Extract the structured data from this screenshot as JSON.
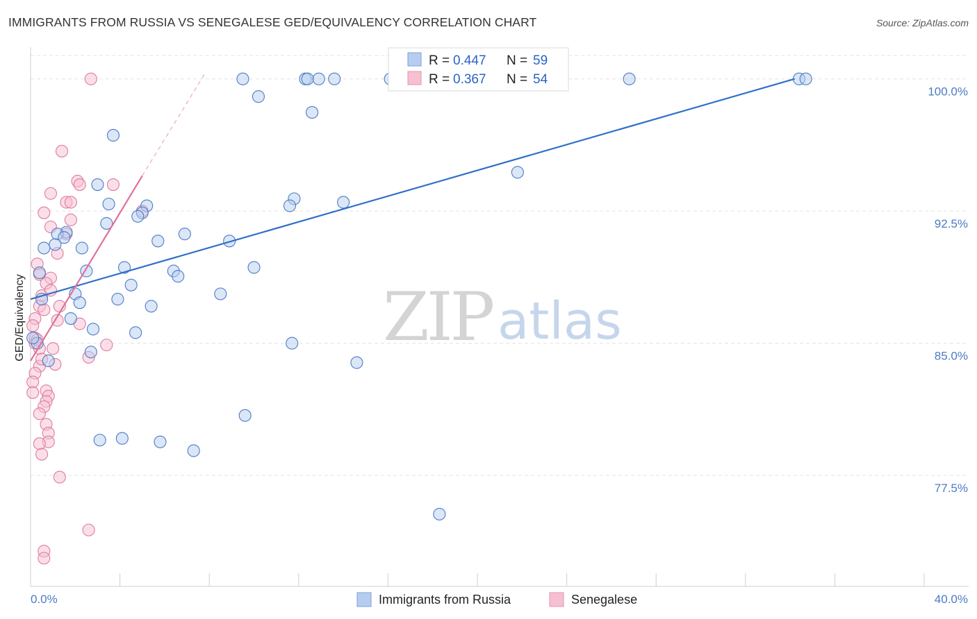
{
  "title": "IMMIGRANTS FROM RUSSIA VS SENEGALESE GED/EQUIVALENCY CORRELATION CHART",
  "source": "Source: ZipAtlas.com",
  "watermark": {
    "zip": "ZIP",
    "atlas": "atlas"
  },
  "colors": {
    "blue": "#4a7cc4",
    "blue_fill": "#b7cdef",
    "blue_line": "#2f6fc9",
    "pink": "#e07aa0",
    "pink_fill": "#f6c0d2",
    "pink_line": "#e0709a",
    "grid": "#e3e3e3"
  },
  "legend": {
    "russia": {
      "r_label": "R =",
      "r_value": "0.447",
      "n_label": "N =",
      "n_value": "59"
    },
    "senegalese": {
      "r_label": "R =",
      "r_value": "0.367",
      "n_label": "N =",
      "n_value": "54"
    }
  },
  "chart_data": {
    "type": "scatter",
    "title": "IMMIGRANTS FROM RUSSIA VS SENEGALESE GED/EQUIVALENCY CORRELATION CHART",
    "xlabel": "",
    "ylabel": "GED/Equivalency",
    "xlim": [
      0,
      40
    ],
    "ylim": [
      71.2,
      101.8
    ],
    "x_tick_labels": [
      "0.0%",
      "40.0%"
    ],
    "y_ticks": [
      77.5,
      85.0,
      92.5,
      100.0
    ],
    "y_tick_labels": [
      "77.5%",
      "85.0%",
      "92.5%",
      "100.0%"
    ],
    "legend_position": "top-center",
    "series": [
      {
        "name": "Immigrants from Russia",
        "color": "#4a7cc4",
        "trend": {
          "x": [
            0,
            34.2
          ],
          "y": [
            87.5,
            100.0
          ]
        },
        "points": [
          [
            9.5,
            100.0
          ],
          [
            12.3,
            100.0
          ],
          [
            12.4,
            100.0
          ],
          [
            12.9,
            100.0
          ],
          [
            13.6,
            100.0
          ],
          [
            16.1,
            100.0
          ],
          [
            26.8,
            100.0
          ],
          [
            34.4,
            100.0
          ],
          [
            34.7,
            100.0
          ],
          [
            10.2,
            99.0
          ],
          [
            12.6,
            98.1
          ],
          [
            3.7,
            96.8
          ],
          [
            21.8,
            94.7
          ],
          [
            3.0,
            94.0
          ],
          [
            11.8,
            93.2
          ],
          [
            11.6,
            92.8
          ],
          [
            3.5,
            92.9
          ],
          [
            5.2,
            92.8
          ],
          [
            5.0,
            92.4
          ],
          [
            14.0,
            93.0
          ],
          [
            4.8,
            92.2
          ],
          [
            3.4,
            91.8
          ],
          [
            1.6,
            91.3
          ],
          [
            1.2,
            91.2
          ],
          [
            6.9,
            91.2
          ],
          [
            1.5,
            91.0
          ],
          [
            0.6,
            90.4
          ],
          [
            1.1,
            90.6
          ],
          [
            2.3,
            90.4
          ],
          [
            5.7,
            90.8
          ],
          [
            8.9,
            90.8
          ],
          [
            0.4,
            89.0
          ],
          [
            2.5,
            89.1
          ],
          [
            4.2,
            89.3
          ],
          [
            6.4,
            89.1
          ],
          [
            6.6,
            88.8
          ],
          [
            10.0,
            89.3
          ],
          [
            4.5,
            88.3
          ],
          [
            2.0,
            87.8
          ],
          [
            8.5,
            87.8
          ],
          [
            0.5,
            87.5
          ],
          [
            3.9,
            87.5
          ],
          [
            2.2,
            87.3
          ],
          [
            5.4,
            87.1
          ],
          [
            1.8,
            86.4
          ],
          [
            2.8,
            85.8
          ],
          [
            4.7,
            85.6
          ],
          [
            11.7,
            85.0
          ],
          [
            0.3,
            85.0
          ],
          [
            0.8,
            84.0
          ],
          [
            2.7,
            84.5
          ],
          [
            14.6,
            83.9
          ],
          [
            9.6,
            80.9
          ],
          [
            3.1,
            79.5
          ],
          [
            4.1,
            79.6
          ],
          [
            5.8,
            79.4
          ],
          [
            7.3,
            78.9
          ],
          [
            18.3,
            75.3
          ],
          [
            0.1,
            85.3
          ]
        ]
      },
      {
        "name": "Senegalese",
        "color": "#e07aa0",
        "trend": {
          "x": [
            0,
            5.0
          ],
          "y": [
            84.0,
            94.5
          ]
        },
        "trend_extension": {
          "x": [
            5.0,
            7.8
          ],
          "y": [
            94.5,
            100.3
          ]
        },
        "points": [
          [
            2.7,
            100.0
          ],
          [
            1.4,
            95.9
          ],
          [
            2.1,
            94.2
          ],
          [
            2.2,
            94.0
          ],
          [
            3.7,
            94.0
          ],
          [
            0.9,
            93.5
          ],
          [
            1.6,
            93.0
          ],
          [
            1.8,
            93.0
          ],
          [
            0.6,
            92.4
          ],
          [
            5.0,
            92.5
          ],
          [
            0.9,
            91.6
          ],
          [
            1.6,
            91.2
          ],
          [
            1.8,
            92.0
          ],
          [
            1.2,
            90.1
          ],
          [
            0.3,
            89.5
          ],
          [
            0.4,
            88.9
          ],
          [
            0.9,
            88.7
          ],
          [
            0.5,
            87.7
          ],
          [
            0.7,
            88.4
          ],
          [
            0.9,
            88.0
          ],
          [
            0.4,
            87.1
          ],
          [
            0.6,
            86.9
          ],
          [
            1.3,
            87.1
          ],
          [
            0.2,
            86.4
          ],
          [
            0.1,
            86.0
          ],
          [
            2.2,
            86.1
          ],
          [
            1.2,
            86.3
          ],
          [
            0.2,
            85.3
          ],
          [
            0.2,
            85.0
          ],
          [
            0.4,
            84.7
          ],
          [
            1.0,
            84.7
          ],
          [
            3.4,
            84.9
          ],
          [
            2.6,
            84.2
          ],
          [
            0.4,
            83.7
          ],
          [
            0.2,
            83.3
          ],
          [
            1.1,
            83.8
          ],
          [
            0.1,
            82.8
          ],
          [
            0.7,
            82.3
          ],
          [
            0.1,
            82.2
          ],
          [
            0.8,
            82.0
          ],
          [
            0.7,
            81.7
          ],
          [
            0.6,
            81.4
          ],
          [
            0.4,
            81.0
          ],
          [
            0.7,
            80.4
          ],
          [
            0.8,
            79.9
          ],
          [
            0.8,
            79.4
          ],
          [
            0.4,
            79.3
          ],
          [
            0.5,
            78.7
          ],
          [
            1.3,
            77.4
          ],
          [
            2.6,
            74.4
          ],
          [
            0.6,
            73.2
          ],
          [
            0.6,
            72.8
          ],
          [
            0.5,
            84.1
          ],
          [
            0.3,
            85.2
          ]
        ]
      }
    ]
  },
  "bottom_legend": [
    "Immigrants from Russia",
    "Senegalese"
  ]
}
